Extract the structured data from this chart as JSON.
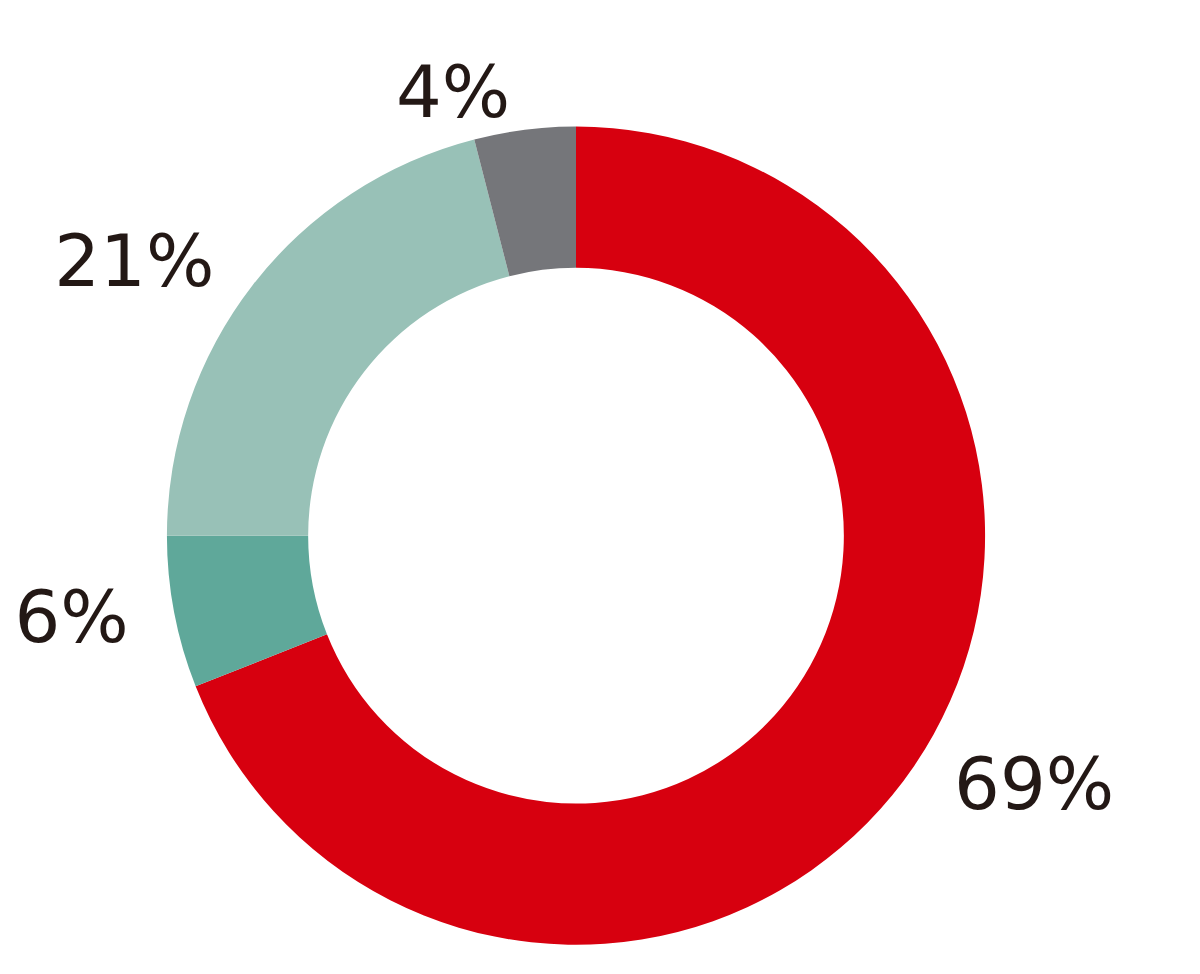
{
  "chart_data": {
    "type": "donut",
    "categories": [
      null,
      null,
      null,
      null
    ],
    "values": [
      69,
      6,
      21,
      4
    ],
    "colors": [
      "#d7000f",
      "#5fa89a",
      "#98c1b7",
      "#75767a"
    ],
    "value_labels": [
      "69%",
      "6%",
      "21%",
      "4%"
    ]
  }
}
